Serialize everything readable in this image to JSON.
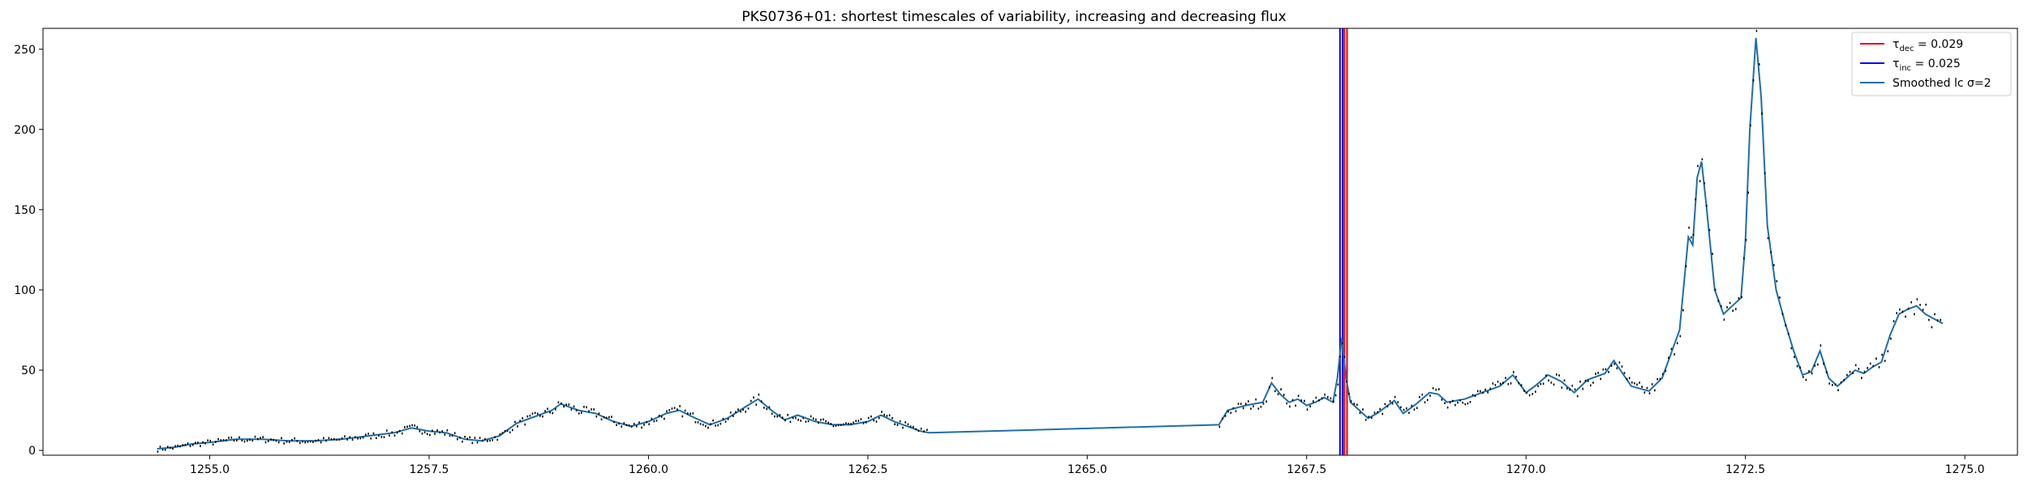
{
  "chart_data": {
    "type": "line",
    "title": "PKS0736+01: shortest timescales of variability, increasing and decreasing flux",
    "xlabel": "",
    "ylabel": "",
    "xlim": [
      1253.1,
      1275.6
    ],
    "ylim": [
      -3,
      263
    ],
    "xticks": [
      1255.0,
      1257.5,
      1260.0,
      1262.5,
      1265.0,
      1267.5,
      1270.0,
      1272.5,
      1275.0
    ],
    "xtick_labels": [
      "1255.0",
      "1257.5",
      "1260.0",
      "1262.5",
      "1265.0",
      "1267.5",
      "1270.0",
      "1272.5",
      "1275.0"
    ],
    "yticks": [
      0,
      50,
      100,
      150,
      200,
      250
    ],
    "ytick_labels": [
      "0",
      "50",
      "100",
      "150",
      "200",
      "250"
    ],
    "grid": false,
    "legend": {
      "placement": "top-right",
      "entries": [
        {
          "name": "τdec = 0.029",
          "color": "#e8000b"
        },
        {
          "name": "τinc = 0.025",
          "color": "#0000ff"
        },
        {
          "name": "Smoothed lc σ=2",
          "color": "#1f6ea7"
        }
      ]
    },
    "vlines": [
      {
        "series": "τinc = 0.025",
        "x": [
          1267.88,
          1267.91
        ],
        "color": "#0000ff"
      },
      {
        "series": "τdec = 0.029",
        "x": [
          1267.93,
          1267.96
        ],
        "color": "#e8000b"
      }
    ],
    "series": [
      {
        "name": "Smoothed lc σ=2",
        "color": "#1f6ea7",
        "x": [
          1254.4,
          1254.6,
          1254.8,
          1255.0,
          1255.3,
          1255.6,
          1255.9,
          1256.2,
          1256.5,
          1256.8,
          1257.1,
          1257.3,
          1257.5,
          1257.7,
          1257.9,
          1258.1,
          1258.3,
          1258.5,
          1258.7,
          1258.9,
          1259.0,
          1259.2,
          1259.4,
          1259.6,
          1259.8,
          1260.0,
          1260.2,
          1260.35,
          1260.5,
          1260.7,
          1260.9,
          1261.1,
          1261.25,
          1261.4,
          1261.55,
          1261.7,
          1261.9,
          1262.1,
          1262.3,
          1262.5,
          1262.65,
          1262.8,
          1262.95,
          1263.1,
          1263.2,
          1266.5,
          1266.6,
          1266.8,
          1267.0,
          1267.1,
          1267.2,
          1267.3,
          1267.4,
          1267.5,
          1267.6,
          1267.7,
          1267.8,
          1267.85,
          1267.9,
          1267.95,
          1268.0,
          1268.1,
          1268.2,
          1268.3,
          1268.5,
          1268.6,
          1268.75,
          1268.9,
          1269.0,
          1269.1,
          1269.3,
          1269.5,
          1269.7,
          1269.85,
          1270.0,
          1270.1,
          1270.25,
          1270.4,
          1270.55,
          1270.7,
          1270.9,
          1271.0,
          1271.2,
          1271.4,
          1271.55,
          1271.65,
          1271.75,
          1271.85,
          1271.9,
          1271.95,
          1272.0,
          1272.05,
          1272.15,
          1272.25,
          1272.35,
          1272.45,
          1272.5,
          1272.55,
          1272.62,
          1272.68,
          1272.75,
          1272.85,
          1272.95,
          1273.05,
          1273.15,
          1273.25,
          1273.35,
          1273.45,
          1273.55,
          1273.65,
          1273.75,
          1273.85,
          1273.95,
          1274.05,
          1274.15,
          1274.25,
          1274.35,
          1274.45,
          1274.55,
          1274.65,
          1274.75
        ],
        "y": [
          1,
          2,
          4,
          5,
          7,
          7,
          6,
          6,
          7,
          9,
          11,
          14,
          12,
          11,
          7,
          6,
          9,
          17,
          21,
          25,
          29,
          25,
          23,
          18,
          15,
          18,
          23,
          25,
          21,
          16,
          20,
          27,
          32,
          25,
          19,
          22,
          18,
          16,
          16,
          18,
          22,
          18,
          15,
          12,
          11,
          16,
          25,
          28,
          30,
          42,
          35,
          30,
          32,
          28,
          30,
          33,
          30,
          45,
          70,
          45,
          30,
          25,
          20,
          23,
          31,
          23,
          29,
          36,
          35,
          30,
          32,
          36,
          40,
          47,
          36,
          40,
          47,
          43,
          36,
          44,
          48,
          56,
          40,
          37,
          45,
          60,
          75,
          133,
          128,
          170,
          180,
          155,
          100,
          85,
          90,
          95,
          130,
          200,
          257,
          220,
          140,
          100,
          80,
          62,
          47,
          49,
          62,
          45,
          40,
          45,
          50,
          48,
          52,
          55,
          72,
          85,
          88,
          90,
          85,
          82,
          79
        ]
      }
    ]
  }
}
